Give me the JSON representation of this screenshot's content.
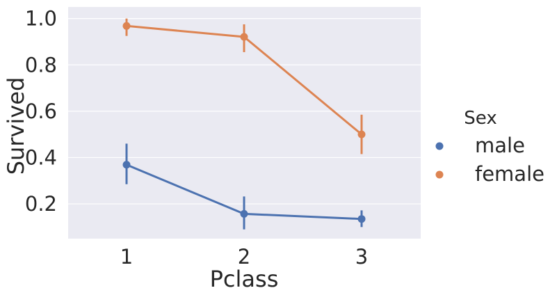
{
  "chart_data": {
    "type": "line",
    "title": "",
    "xlabel": "Pclass",
    "ylabel": "Survived",
    "categories": [
      "1",
      "2",
      "3"
    ],
    "ylim": [
      0.05,
      1.05
    ],
    "yticks": [
      0.2,
      0.4,
      0.6,
      0.8,
      1.0
    ],
    "ytick_labels": [
      "0.2",
      "0.4",
      "0.6",
      "0.8",
      "1.0"
    ],
    "grid": true,
    "background": "#EAEAF2",
    "legend": {
      "title": "Sex",
      "placement": "right"
    },
    "series": [
      {
        "name": "male",
        "color": "#4C72B0",
        "values": [
          0.369,
          0.157,
          0.135
        ],
        "ci_low": [
          0.285,
          0.09,
          0.1
        ],
        "ci_high": [
          0.46,
          0.232,
          0.172
        ]
      },
      {
        "name": "female",
        "color": "#DD8452",
        "values": [
          0.968,
          0.921,
          0.5
        ],
        "ci_low": [
          0.925,
          0.855,
          0.415
        ],
        "ci_high": [
          1.0,
          0.975,
          0.585
        ]
      }
    ]
  }
}
